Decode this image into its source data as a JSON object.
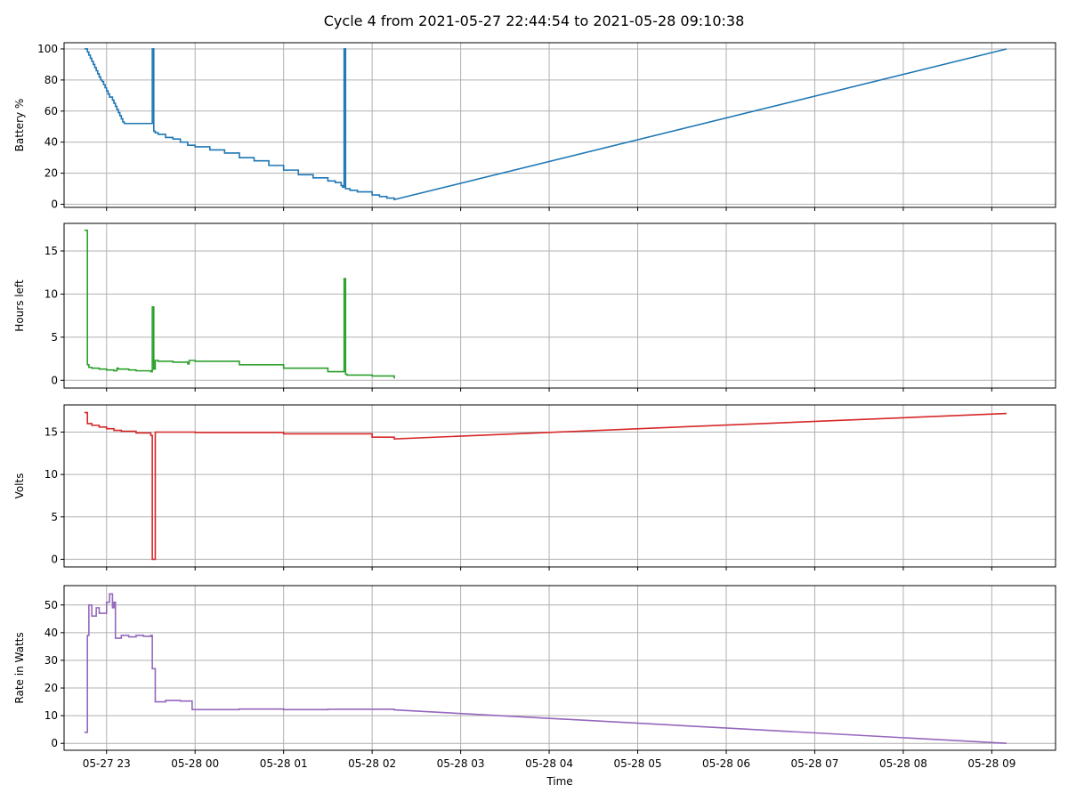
{
  "figure": {
    "title": "Cycle 4 from 2021-05-27 22:44:54 to 2021-05-28 09:10:38",
    "xlabel": "Time"
  },
  "chart_data": [
    {
      "type": "line",
      "ylabel": "Battery %",
      "color": "#1f77b4",
      "step": true,
      "ylim": [
        -2,
        104
      ],
      "yticks": [
        0,
        20,
        40,
        60,
        80,
        100
      ],
      "xlim": [
        22.52,
        9.72
      ],
      "x_unit": "hour of day (22.x = 2021-05-27, 0–9.x = 2021-05-28)",
      "series": [
        {
          "x": [
            "22:45",
            "22:47",
            "22:48",
            "22:49",
            "22:50",
            "22:51",
            "22:52",
            "22:53",
            "22:54",
            "22:55",
            "22:56",
            "22:57",
            "22:58",
            "22:59",
            "23:00",
            "23:01",
            "23:02",
            "23:04",
            "23:05",
            "23:06",
            "23:07",
            "23:08",
            "23:09",
            "23:10",
            "23:11",
            "23:12",
            "23:13",
            "23:14",
            "23:15",
            "23:16",
            "23:18",
            "23:19",
            "23:20",
            "23:21",
            "23:31",
            "23:32",
            "23:33",
            "23:35",
            "23:40",
            "23:45",
            "23:50",
            "23:55",
            "00:00",
            "00:10",
            "00:20",
            "00:30",
            "00:40",
            "00:50",
            "01:00",
            "01:10",
            "01:20",
            "01:30",
            "01:35",
            "01:39",
            "01:40",
            "01:41",
            "01:42",
            "01:45",
            "01:50",
            "02:00",
            "02:05",
            "02:10",
            "02:15",
            "09:10"
          ],
          "y": [
            100,
            98,
            96,
            94,
            92,
            90,
            88,
            86,
            84,
            82,
            80,
            79,
            77,
            75,
            73,
            71,
            69,
            67,
            65,
            63,
            61,
            59,
            57,
            55,
            53,
            52,
            52,
            52,
            52,
            52,
            52,
            52,
            52,
            52,
            100,
            47,
            46,
            45,
            43,
            42,
            40,
            38,
            37,
            35,
            33,
            30,
            28,
            25,
            22,
            19,
            17,
            15,
            14,
            12,
            11,
            100,
            10,
            9,
            8,
            6,
            5,
            4,
            3,
            100
          ]
        }
      ]
    },
    {
      "type": "line",
      "ylabel": "Hours left",
      "color": "#2ca02c",
      "step": true,
      "ylim": [
        -0.9,
        18.2
      ],
      "yticks": [
        0,
        5,
        10,
        15
      ],
      "series": [
        {
          "x": [
            "22:45",
            "22:47",
            "22:48",
            "22:50",
            "22:55",
            "23:00",
            "23:05",
            "23:07",
            "23:08",
            "23:15",
            "23:20",
            "23:30",
            "23:31",
            "23:32",
            "23:33",
            "23:35",
            "23:45",
            "23:55",
            "23:56",
            "00:00",
            "00:30",
            "01:00",
            "01:30",
            "01:41",
            "01:42",
            "01:43",
            "02:00",
            "02:15"
          ],
          "y": [
            17.4,
            1.8,
            1.5,
            1.4,
            1.3,
            1.2,
            1.1,
            1.4,
            1.3,
            1.2,
            1.1,
            1.0,
            8.5,
            1.3,
            2.3,
            2.2,
            2.1,
            1.9,
            2.3,
            2.2,
            1.8,
            1.4,
            1.0,
            11.8,
            0.7,
            0.6,
            0.5,
            0.2
          ]
        }
      ]
    },
    {
      "type": "line",
      "ylabel": "Volts",
      "color": "#d62728",
      "step": true,
      "ylim": [
        -0.9,
        18.2
      ],
      "yticks": [
        0,
        5,
        10,
        15
      ],
      "series": [
        {
          "x": [
            "22:45",
            "22:47",
            "22:50",
            "22:55",
            "23:00",
            "23:05",
            "23:10",
            "23:20",
            "23:30",
            "23:31",
            "23:33",
            "00:00",
            "01:00",
            "02:00",
            "02:15",
            "09:10"
          ],
          "y": [
            17.3,
            16.0,
            15.8,
            15.6,
            15.4,
            15.2,
            15.1,
            14.9,
            14.6,
            0.0,
            15.0,
            14.95,
            14.8,
            14.4,
            14.2,
            17.2
          ]
        }
      ]
    },
    {
      "type": "line",
      "ylabel": "Rate in Watts",
      "color": "#9467bd",
      "step": true,
      "ylim": [
        -2.5,
        57
      ],
      "yticks": [
        0,
        10,
        20,
        30,
        40,
        50
      ],
      "series": [
        {
          "x": [
            "22:45",
            "22:47",
            "22:48",
            "22:50",
            "22:53",
            "22:55",
            "23:00",
            "23:02",
            "23:04",
            "23:05",
            "23:06",
            "23:10",
            "23:15",
            "23:20",
            "23:25",
            "23:30",
            "23:31",
            "23:33",
            "23:40",
            "23:50",
            "23:58",
            "00:30",
            "01:00",
            "01:30",
            "02:15",
            "09:10"
          ],
          "y": [
            4,
            39,
            50,
            46,
            49,
            47,
            51,
            54,
            49,
            51,
            38,
            39,
            38.5,
            39,
            38.7,
            39,
            27,
            15,
            15.5,
            15.3,
            12.2,
            12.4,
            12.2,
            12.3,
            12.1,
            0
          ]
        }
      ]
    }
  ],
  "x_axis": {
    "tick_labels": [
      "05-27 23",
      "05-28 00",
      "05-28 01",
      "05-28 02",
      "05-28 03",
      "05-28 04",
      "05-28 05",
      "05-28 06",
      "05-28 07",
      "05-28 08",
      "05-28 09"
    ]
  },
  "grid": true
}
